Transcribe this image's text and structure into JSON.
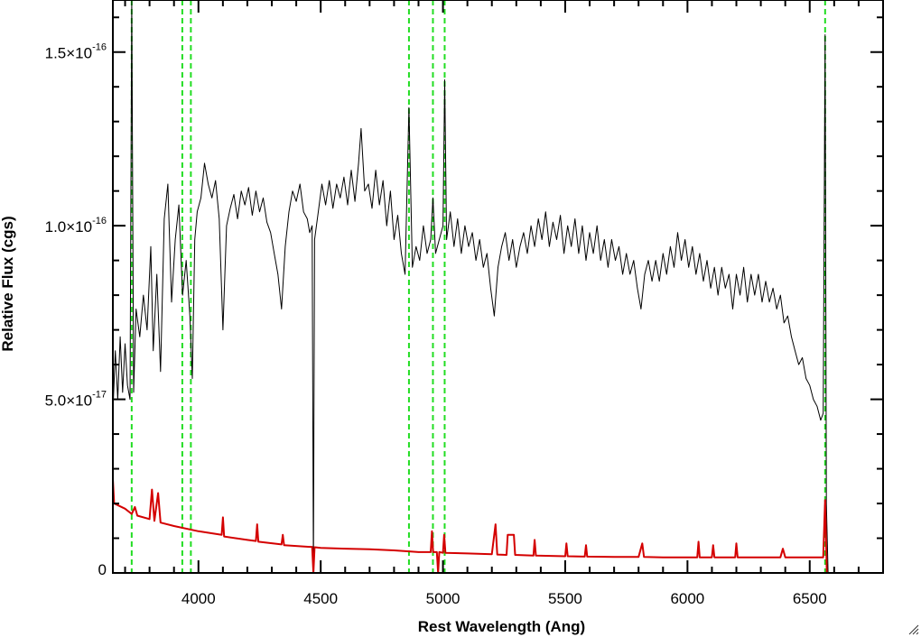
{
  "chart_data": {
    "type": "line",
    "xlabel": "Rest Wavelength (Ang)",
    "ylabel": "Relative Flux (cgs)",
    "xlim": [
      3650,
      6800
    ],
    "ylim": [
      0,
      1.65e-16
    ],
    "x_ticks": [
      {
        "value": 4000,
        "label": "4000"
      },
      {
        "value": 4500,
        "label": "4500"
      },
      {
        "value": 5000,
        "label": "5000"
      },
      {
        "value": 5500,
        "label": "5500"
      },
      {
        "value": 6000,
        "label": "6000"
      },
      {
        "value": 6500,
        "label": "6500"
      }
    ],
    "y_ticks": [
      {
        "value": 0,
        "mantissa": "0",
        "exponent": ""
      },
      {
        "value": 5e-17,
        "mantissa": "5.0×10",
        "exponent": "-17"
      },
      {
        "value": 1e-16,
        "mantissa": "1.0×10",
        "exponent": "-16"
      },
      {
        "value": 1.5e-16,
        "mantissa": "1.5×10",
        "exponent": "-16"
      }
    ],
    "emission_line_markers": [
      3727,
      3934,
      3969,
      4861,
      4959,
      5007,
      6563
    ],
    "series": [
      {
        "color": "#000000",
        "points": [
          [
            3650,
            4.6e-17
          ],
          [
            3660,
            6.4e-17
          ],
          [
            3670,
            5e-17
          ],
          [
            3680,
            6.8e-17
          ],
          [
            3690,
            5.2e-17
          ],
          [
            3700,
            6.6e-17
          ],
          [
            3710,
            5.4e-17
          ],
          [
            3720,
            5e-17
          ],
          [
            3727,
            1.65e-16
          ],
          [
            3735,
            5.2e-17
          ],
          [
            3745,
            7.6e-17
          ],
          [
            3760,
            6.8e-17
          ],
          [
            3775,
            8e-17
          ],
          [
            3790,
            7e-17
          ],
          [
            3805,
            9.4e-17
          ],
          [
            3815,
            6.4e-17
          ],
          [
            3830,
            8.6e-17
          ],
          [
            3845,
            5.8e-17
          ],
          [
            3860,
            1.02e-16
          ],
          [
            3875,
            1.12e-16
          ],
          [
            3890,
            7.8e-17
          ],
          [
            3905,
            9.6e-17
          ],
          [
            3920,
            1.06e-16
          ],
          [
            3935,
            8e-17
          ],
          [
            3950,
            9e-17
          ],
          [
            3965,
            7.4e-17
          ],
          [
            3975,
            5.6e-17
          ],
          [
            3985,
            9.6e-17
          ],
          [
            3995,
            1.04e-16
          ],
          [
            4010,
            1.08e-16
          ],
          [
            4025,
            1.18e-16
          ],
          [
            4040,
            1.12e-16
          ],
          [
            4055,
            1.08e-16
          ],
          [
            4070,
            1.13e-16
          ],
          [
            4085,
            1.02e-16
          ],
          [
            4100,
            7e-17
          ],
          [
            4115,
            1e-16
          ],
          [
            4130,
            1.05e-16
          ],
          [
            4145,
            1.09e-16
          ],
          [
            4160,
            1.02e-16
          ],
          [
            4175,
            1.1e-16
          ],
          [
            4190,
            1.06e-16
          ],
          [
            4205,
            1.11e-16
          ],
          [
            4220,
            1.03e-16
          ],
          [
            4235,
            1.1e-16
          ],
          [
            4250,
            1.04e-16
          ],
          [
            4265,
            1.08e-16
          ],
          [
            4280,
            1.01e-16
          ],
          [
            4295,
            9.8e-17
          ],
          [
            4310,
            9.2e-17
          ],
          [
            4325,
            8.6e-17
          ],
          [
            4340,
            7.6e-17
          ],
          [
            4355,
            9.4e-17
          ],
          [
            4370,
            1.04e-16
          ],
          [
            4385,
            1.1e-16
          ],
          [
            4400,
            1.07e-16
          ],
          [
            4415,
            1.12e-16
          ],
          [
            4430,
            1.04e-16
          ],
          [
            4445,
            1.02e-16
          ],
          [
            4455,
            9.8e-17
          ],
          [
            4465,
            1e-16
          ],
          [
            4470,
            0
          ],
          [
            4475,
            9.6e-17
          ],
          [
            4490,
            1.04e-16
          ],
          [
            4505,
            1.12e-16
          ],
          [
            4520,
            1.06e-16
          ],
          [
            4535,
            1.13e-16
          ],
          [
            4550,
            1.05e-16
          ],
          [
            4565,
            1.12e-16
          ],
          [
            4580,
            1.08e-16
          ],
          [
            4595,
            1.14e-16
          ],
          [
            4610,
            1.06e-16
          ],
          [
            4625,
            1.16e-16
          ],
          [
            4640,
            1.07e-16
          ],
          [
            4655,
            1.18e-16
          ],
          [
            4665,
            1.28e-16
          ],
          [
            4680,
            1.1e-16
          ],
          [
            4695,
            1.12e-16
          ],
          [
            4710,
            1.05e-16
          ],
          [
            4725,
            1.16e-16
          ],
          [
            4740,
            1.06e-16
          ],
          [
            4755,
            1.13e-16
          ],
          [
            4770,
            1e-16
          ],
          [
            4785,
            1.1e-16
          ],
          [
            4800,
            9.6e-17
          ],
          [
            4815,
            1.03e-16
          ],
          [
            4830,
            9.2e-17
          ],
          [
            4845,
            8.6e-17
          ],
          [
            4861,
            1.34e-16
          ],
          [
            4875,
            8.8e-17
          ],
          [
            4890,
            9.4e-17
          ],
          [
            4905,
            9e-17
          ],
          [
            4920,
            1e-16
          ],
          [
            4935,
            9.2e-17
          ],
          [
            4950,
            9.6e-17
          ],
          [
            4959,
            1.08e-16
          ],
          [
            4970,
            9.2e-17
          ],
          [
            4985,
            9.6e-17
          ],
          [
            5000,
            1e-16
          ],
          [
            5007,
            1.42e-16
          ],
          [
            5015,
            9.6e-17
          ],
          [
            5030,
            1.04e-16
          ],
          [
            5045,
            9.4e-17
          ],
          [
            5060,
            1.02e-16
          ],
          [
            5075,
            9.2e-17
          ],
          [
            5090,
            1e-16
          ],
          [
            5105,
            9.4e-17
          ],
          [
            5120,
            9.8e-17
          ],
          [
            5135,
            9e-17
          ],
          [
            5150,
            9.6e-17
          ],
          [
            5165,
            8.8e-17
          ],
          [
            5180,
            9.2e-17
          ],
          [
            5195,
            8.2e-17
          ],
          [
            5210,
            7.4e-17
          ],
          [
            5225,
            8.8e-17
          ],
          [
            5240,
            9.4e-17
          ],
          [
            5255,
            9.8e-17
          ],
          [
            5270,
            9e-17
          ],
          [
            5285,
            9.6e-17
          ],
          [
            5300,
            8.8e-17
          ],
          [
            5315,
            9.4e-17
          ],
          [
            5330,
            9.8e-17
          ],
          [
            5345,
            9.2e-17
          ],
          [
            5360,
            1e-16
          ],
          [
            5375,
            9.4e-17
          ],
          [
            5390,
            1.02e-16
          ],
          [
            5405,
            9.6e-17
          ],
          [
            5420,
            1.04e-16
          ],
          [
            5435,
            9.4e-17
          ],
          [
            5450,
            1.01e-16
          ],
          [
            5465,
            9.6e-17
          ],
          [
            5480,
            1.03e-16
          ],
          [
            5495,
            9.2e-17
          ],
          [
            5510,
            1e-16
          ],
          [
            5525,
            9.4e-17
          ],
          [
            5540,
            1.02e-16
          ],
          [
            5555,
            9.2e-17
          ],
          [
            5570,
            1e-16
          ],
          [
            5585,
            9e-17
          ],
          [
            5600,
            9.8e-17
          ],
          [
            5615,
            9.2e-17
          ],
          [
            5630,
            1e-16
          ],
          [
            5645,
            9e-17
          ],
          [
            5660,
            9.6e-17
          ],
          [
            5675,
            8.8e-17
          ],
          [
            5690,
            9.6e-17
          ],
          [
            5705,
            9e-17
          ],
          [
            5720,
            9.4e-17
          ],
          [
            5735,
            8.6e-17
          ],
          [
            5750,
            9.2e-17
          ],
          [
            5765,
            8.6e-17
          ],
          [
            5780,
            9e-17
          ],
          [
            5795,
            8.2e-17
          ],
          [
            5810,
            7.6e-17
          ],
          [
            5825,
            8.6e-17
          ],
          [
            5840,
            9e-17
          ],
          [
            5855,
            8.4e-17
          ],
          [
            5870,
            9e-17
          ],
          [
            5885,
            8.4e-17
          ],
          [
            5900,
            9.2e-17
          ],
          [
            5915,
            8.6e-17
          ],
          [
            5930,
            9.4e-17
          ],
          [
            5945,
            8.8e-17
          ],
          [
            5960,
            9.8e-17
          ],
          [
            5975,
            9e-17
          ],
          [
            5990,
            9.6e-17
          ],
          [
            6005,
            8.8e-17
          ],
          [
            6020,
            9.4e-17
          ],
          [
            6035,
            8.6e-17
          ],
          [
            6050,
            9.2e-17
          ],
          [
            6065,
            8.4e-17
          ],
          [
            6080,
            9e-17
          ],
          [
            6095,
            8.2e-17
          ],
          [
            6110,
            8.8e-17
          ],
          [
            6125,
            8e-17
          ],
          [
            6140,
            8.8e-17
          ],
          [
            6155,
            8.2e-17
          ],
          [
            6170,
            8.6e-17
          ],
          [
            6185,
            7.6e-17
          ],
          [
            6200,
            8.6e-17
          ],
          [
            6215,
            8e-17
          ],
          [
            6230,
            8.8e-17
          ],
          [
            6245,
            7.8e-17
          ],
          [
            6260,
            8.6e-17
          ],
          [
            6275,
            8e-17
          ],
          [
            6290,
            8.6e-17
          ],
          [
            6305,
            7.8e-17
          ],
          [
            6320,
            8.4e-17
          ],
          [
            6335,
            7.8e-17
          ],
          [
            6350,
            8.2e-17
          ],
          [
            6365,
            7.6e-17
          ],
          [
            6380,
            8e-17
          ],
          [
            6395,
            7.2e-17
          ],
          [
            6410,
            7.4e-17
          ],
          [
            6425,
            6.8e-17
          ],
          [
            6440,
            6.4e-17
          ],
          [
            6455,
            6e-17
          ],
          [
            6470,
            6.2e-17
          ],
          [
            6485,
            5.6e-17
          ],
          [
            6500,
            5.4e-17
          ],
          [
            6515,
            5e-17
          ],
          [
            6530,
            4.8e-17
          ],
          [
            6545,
            4.4e-17
          ],
          [
            6555,
            4.6e-17
          ],
          [
            6563,
            1.55e-16
          ],
          [
            6568,
            2e-17
          ],
          [
            6575,
            0
          ]
        ]
      },
      {
        "color": "#d40000",
        "points": [
          [
            3650,
            2.7e-17
          ],
          [
            3655,
            2e-17
          ],
          [
            3700,
            1.85e-17
          ],
          [
            3727,
            1.7e-17
          ],
          [
            3740,
            1.9e-17
          ],
          [
            3750,
            1.65e-17
          ],
          [
            3800,
            1.55e-17
          ],
          [
            3810,
            2.4e-17
          ],
          [
            3820,
            1.5e-17
          ],
          [
            3835,
            2.3e-17
          ],
          [
            3845,
            1.45e-17
          ],
          [
            3900,
            1.35e-17
          ],
          [
            4000,
            1.2e-17
          ],
          [
            4095,
            1.1e-17
          ],
          [
            4100,
            1.6e-17
          ],
          [
            4105,
            1.05e-17
          ],
          [
            4200,
            9.5e-18
          ],
          [
            4235,
            9.2e-18
          ],
          [
            4240,
            1.4e-17
          ],
          [
            4245,
            9e-18
          ],
          [
            4340,
            8.2e-18
          ],
          [
            4345,
            1.1e-17
          ],
          [
            4350,
            8e-18
          ],
          [
            4455,
            7.5e-18
          ],
          [
            4465,
            7.5e-18
          ],
          [
            4470,
            0
          ],
          [
            4475,
            7.4e-18
          ],
          [
            4500,
            7.2e-18
          ],
          [
            4600,
            7e-18
          ],
          [
            4700,
            6.8e-18
          ],
          [
            4800,
            6.5e-18
          ],
          [
            4861,
            6.2e-18
          ],
          [
            4900,
            6e-18
          ],
          [
            4950,
            6e-18
          ],
          [
            4955,
            1.2e-17
          ],
          [
            4960,
            6e-18
          ],
          [
            4975,
            6e-18
          ],
          [
            4980,
            0
          ],
          [
            4985,
            6e-18
          ],
          [
            5000,
            5.8e-18
          ],
          [
            5005,
            1.1e-17
          ],
          [
            5010,
            5.8e-18
          ],
          [
            5100,
            5.6e-18
          ],
          [
            5200,
            5.4e-18
          ],
          [
            5215,
            1.4e-17
          ],
          [
            5222,
            5.3e-18
          ],
          [
            5260,
            5.2e-18
          ],
          [
            5265,
            1.1e-17
          ],
          [
            5290,
            1.1e-17
          ],
          [
            5295,
            5.2e-18
          ],
          [
            5370,
            5e-18
          ],
          [
            5375,
            9.5e-18
          ],
          [
            5380,
            5e-18
          ],
          [
            5500,
            4.8e-18
          ],
          [
            5505,
            8.5e-18
          ],
          [
            5510,
            4.8e-18
          ],
          [
            5580,
            4.7e-18
          ],
          [
            5585,
            8e-18
          ],
          [
            5590,
            4.7e-18
          ],
          [
            5700,
            4.6e-18
          ],
          [
            5800,
            4.6e-18
          ],
          [
            5815,
            8.5e-18
          ],
          [
            5822,
            4.6e-18
          ],
          [
            5900,
            4.5e-18
          ],
          [
            6000,
            4.5e-18
          ],
          [
            6040,
            4.5e-18
          ],
          [
            6045,
            9e-18
          ],
          [
            6050,
            4.5e-18
          ],
          [
            6100,
            4.5e-18
          ],
          [
            6105,
            8e-18
          ],
          [
            6110,
            4.5e-18
          ],
          [
            6195,
            4.5e-18
          ],
          [
            6200,
            8.5e-18
          ],
          [
            6205,
            4.5e-18
          ],
          [
            6300,
            4.5e-18
          ],
          [
            6380,
            4.5e-18
          ],
          [
            6390,
            7e-18
          ],
          [
            6400,
            4.5e-18
          ],
          [
            6500,
            4.5e-18
          ],
          [
            6555,
            4.5e-18
          ],
          [
            6563,
            2.1e-17
          ],
          [
            6570,
            0
          ],
          [
            6800,
            0
          ]
        ]
      }
    ]
  }
}
